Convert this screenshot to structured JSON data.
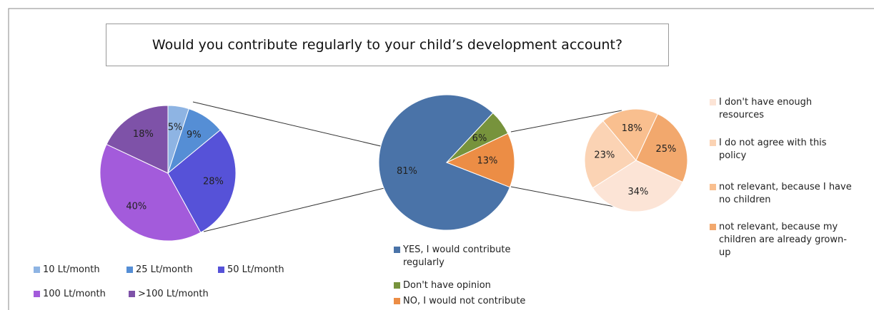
{
  "chart_data": [
    {
      "type": "pie",
      "categories": [
        "10 Lt/month",
        "25 Lt/month",
        "50 Lt/month",
        "100 Lt/month",
        ">100 Lt/month"
      ],
      "values": [
        5,
        9,
        28,
        40,
        18
      ],
      "value_labels": [
        "5%",
        "9%",
        "28%",
        "40%",
        "18%"
      ],
      "colors": [
        "#8eb4e3",
        "#558ed5",
        "#5652d8",
        "#a35bdb",
        "#7e52a8"
      ]
    },
    {
      "type": "pie",
      "title": "Would you contribute regularly to your child’s development account?",
      "categories": [
        "YES, I would contribute regularly",
        "Don't have opinion",
        "NO, I would not contribute"
      ],
      "values": [
        81,
        6,
        13
      ],
      "value_labels": [
        "81%",
        "6%",
        "13%"
      ],
      "colors": [
        "#4a73a8",
        "#77933c",
        "#ec8d45"
      ]
    },
    {
      "type": "pie",
      "categories": [
        "I don't have enough resources",
        "I do not agree with this policy",
        "not relevant, because I have no children",
        "not relevant, because my children are already grown-up"
      ],
      "values": [
        34,
        23,
        18,
        25
      ],
      "value_labels": [
        "34%",
        "23%",
        "18%",
        "25%"
      ],
      "colors": [
        "#fce4d6",
        "#fbd3b4",
        "#f9bf8f",
        "#f2a86d"
      ]
    }
  ]
}
